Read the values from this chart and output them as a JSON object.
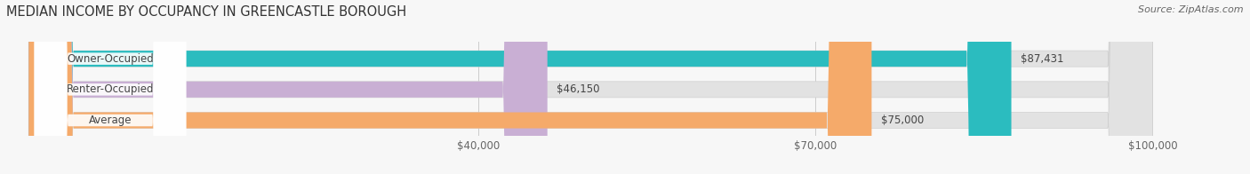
{
  "title": "MEDIAN INCOME BY OCCUPANCY IN GREENCASTLE BOROUGH",
  "source": "Source: ZipAtlas.com",
  "categories": [
    "Owner-Occupied",
    "Renter-Occupied",
    "Average"
  ],
  "values": [
    87431,
    46150,
    75000
  ],
  "bar_colors": [
    "#2bbcbf",
    "#c9afd4",
    "#f5aa6a"
  ],
  "bar_labels": [
    "$87,431",
    "$46,150",
    "$75,000"
  ],
  "data_min": 0,
  "data_max": 100000,
  "xticks": [
    40000,
    70000,
    100000
  ],
  "xtick_labels": [
    "$40,000",
    "$70,000",
    "$100,000"
  ],
  "bg_color": "#f7f7f7",
  "bar_bg_color": "#e2e2e2",
  "title_fontsize": 10.5,
  "label_fontsize": 8.5,
  "source_fontsize": 8,
  "bar_height": 0.52,
  "label_pill_color": "#ffffff",
  "label_text_color": "#444444",
  "value_text_color": "#444444"
}
